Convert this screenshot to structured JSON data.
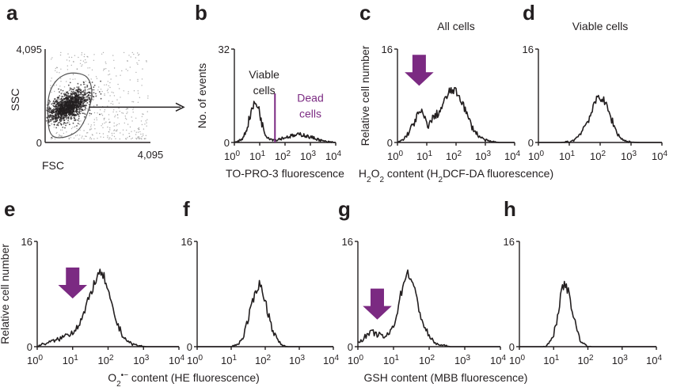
{
  "colors": {
    "ink": "#231f20",
    "accent": "#7b2a82",
    "gate": "#555555"
  },
  "chart_data": [
    {
      "panel": "a",
      "type": "scatter",
      "xlabel": "FSC",
      "ylabel": "SSC",
      "xlim": [
        0,
        4095
      ],
      "ylim": [
        0,
        4095
      ],
      "x_ticks": [
        {
          "v": 0,
          "label": "0"
        },
        {
          "v": 4095,
          "label": "4,095"
        }
      ],
      "y_ticks": [
        {
          "v": 0,
          "label": "0"
        },
        {
          "v": 4095,
          "label": "4,095"
        }
      ],
      "gate": [
        [
          130,
          1920
        ],
        [
          430,
          2700
        ],
        [
          1000,
          3040
        ],
        [
          1650,
          2830
        ],
        [
          1800,
          1920
        ],
        [
          1350,
          620
        ],
        [
          600,
          210
        ],
        [
          170,
          520
        ]
      ],
      "cluster_center": [
        900,
        1580
      ]
    },
    {
      "panel": "b",
      "type": "line",
      "xscale": "log",
      "xlabel": "TO-PRO-3 fluorescence",
      "ylabel": "No. of events",
      "xlim": [
        1,
        10000
      ],
      "ylim": [
        0,
        32
      ],
      "y_ticks": [
        {
          "v": 0,
          "label": "0"
        },
        {
          "v": 32,
          "label": "32"
        }
      ],
      "x_ticks": [
        {
          "exp": "0"
        },
        {
          "exp": "1"
        },
        {
          "exp": "2"
        },
        {
          "exp": "3"
        },
        {
          "exp": "4"
        }
      ],
      "series": [
        {
          "x": [
            1.0,
            1.4,
            2.0,
            2.8,
            4.0,
            5.0,
            6.3,
            7.5,
            8.5,
            10,
            11,
            12.5,
            14,
            16,
            20,
            25,
            32,
            40,
            50,
            63,
            80,
            100,
            140,
            200,
            280,
            400,
            560,
            800,
            1000,
            1400,
            2000,
            2800,
            4000,
            6000,
            10000
          ],
          "y": [
            0,
            0.3,
            1.2,
            3.5,
            8.5,
            11.5,
            13.3,
            13.0,
            12.6,
            10.5,
            8.3,
            6.2,
            4.8,
            3.2,
            2.0,
            1.4,
            1.0,
            0.9,
            1.0,
            1.3,
            1.5,
            1.7,
            2.0,
            2.3,
            2.4,
            2.8,
            2.6,
            2.0,
            1.8,
            1.5,
            1.1,
            0.6,
            0.3,
            0.1,
            0
          ]
        }
      ],
      "threshold": 40,
      "annotations": [
        {
          "lines": [
            "Viable",
            "cells"
          ],
          "at": [
            15,
            22
          ],
          "color": "ink"
        },
        {
          "lines": [
            "Dead",
            "cells"
          ],
          "at": [
            1000,
            14
          ],
          "color": "accent"
        }
      ]
    },
    {
      "panel": "c",
      "type": "line",
      "xscale": "log",
      "title": "All cells",
      "xlabel": "H2O2 content (H2DCF-DA fluorescence)",
      "ylabel": "Relative cell number",
      "xlim": [
        1,
        10000
      ],
      "ylim": [
        0,
        16
      ],
      "y_ticks": [
        {
          "v": 0,
          "label": "0"
        },
        {
          "v": 16,
          "label": "16"
        }
      ],
      "x_ticks": [
        {
          "exp": "0"
        },
        {
          "exp": "1"
        },
        {
          "exp": "2"
        },
        {
          "exp": "3"
        },
        {
          "exp": "4"
        }
      ],
      "series": [
        {
          "x": [
            1.0,
            1.6,
            2.5,
            3.5,
            4.5,
            5.5,
            6.5,
            7.5,
            9,
            11,
            13,
            16,
            20,
            25,
            32,
            45,
            60,
            80,
            100,
            130,
            170,
            220,
            300,
            400,
            600,
            900,
            1300,
            2000,
            3000,
            5000,
            10000
          ],
          "y": [
            0,
            0.5,
            1.8,
            3.2,
            4.3,
            5.0,
            5.2,
            4.8,
            3.7,
            3.0,
            3.3,
            4.1,
            4.7,
            5.0,
            5.9,
            7.6,
            8.7,
            9.0,
            8.6,
            7.9,
            6.8,
            5.1,
            3.4,
            2.2,
            1.1,
            0.5,
            0.2,
            0.1,
            0,
            0,
            0
          ]
        }
      ],
      "arrow_at": [
        5.5,
        9.8
      ]
    },
    {
      "panel": "d",
      "type": "line",
      "xscale": "log",
      "title": "Viable cells",
      "xlabel": "",
      "ylabel": "",
      "xlim": [
        1,
        10000
      ],
      "ylim": [
        0,
        16
      ],
      "y_ticks": [
        {
          "v": 0,
          "label": "0"
        },
        {
          "v": 16,
          "label": "16"
        }
      ],
      "x_ticks": [
        {
          "exp": "0"
        },
        {
          "exp": "1"
        },
        {
          "exp": "2"
        },
        {
          "exp": "3"
        },
        {
          "exp": "4"
        }
      ],
      "series": [
        {
          "x": [
            1.0,
            5,
            10,
            14,
            18,
            22,
            30,
            40,
            50,
            60,
            70,
            80,
            90,
            100,
            120,
            150,
            200,
            260,
            320,
            400,
            500,
            700,
            1000,
            2000,
            10000
          ],
          "y": [
            0,
            0,
            0.1,
            0.4,
            0.9,
            1.5,
            2.6,
            3.8,
            4.9,
            5.8,
            6.9,
            7.6,
            8.0,
            7.8,
            7.4,
            6.6,
            4.9,
            3.4,
            2.1,
            1.2,
            0.6,
            0.2,
            0.05,
            0,
            0
          ]
        }
      ]
    },
    {
      "panel": "e",
      "type": "line",
      "xscale": "log",
      "xlabel": "O2•− content (HE fluorescence)",
      "ylabel": "Relative cell number",
      "xlim": [
        1,
        10000
      ],
      "ylim": [
        0,
        16
      ],
      "y_ticks": [
        {
          "v": 0,
          "label": "0"
        },
        {
          "v": 16,
          "label": "16"
        }
      ],
      "x_ticks": [
        {
          "exp": "0"
        },
        {
          "exp": "1"
        },
        {
          "exp": "2"
        },
        {
          "exp": "3"
        },
        {
          "exp": "4"
        }
      ],
      "series": [
        {
          "x": [
            1.0,
            1.5,
            2,
            3,
            4,
            5,
            6,
            7,
            8,
            10,
            12,
            15,
            18,
            22,
            27,
            33,
            40,
            50,
            60,
            70,
            80,
            90,
            110,
            140,
            180,
            230,
            300,
            400,
            550,
            800,
            1200,
            10000
          ],
          "y": [
            0.1,
            0.4,
            0.6,
            0.9,
            1.1,
            1.4,
            1.6,
            1.9,
            2.0,
            2.2,
            2.8,
            3.5,
            4.2,
            5.3,
            6.8,
            8.3,
            9.5,
            10.6,
            11.1,
            10.9,
            10.4,
            9.1,
            7.4,
            5.3,
            3.6,
            2.2,
            1.3,
            0.6,
            0.3,
            0.1,
            0,
            0
          ]
        }
      ],
      "arrow_at": [
        10,
        7.4
      ]
    },
    {
      "panel": "f",
      "type": "line",
      "xscale": "log",
      "xlabel": "",
      "ylabel": "",
      "xlim": [
        1,
        10000
      ],
      "ylim": [
        0,
        16
      ],
      "y_ticks": [
        {
          "v": 0,
          "label": "0"
        },
        {
          "v": 16,
          "label": "16"
        }
      ],
      "x_ticks": [
        {
          "exp": "0"
        },
        {
          "exp": "1"
        },
        {
          "exp": "2"
        },
        {
          "exp": "3"
        },
        {
          "exp": "4"
        }
      ],
      "series": [
        {
          "x": [
            1.0,
            10,
            15,
            20,
            25,
            30,
            38,
            45,
            52,
            60,
            66,
            72,
            80,
            90,
            100,
            120,
            150,
            200,
            260,
            330,
            450,
            10000
          ],
          "y": [
            0,
            0,
            0.3,
            1.0,
            2.2,
            3.8,
            5.6,
            7.1,
            8.4,
            9.2,
            9.5,
            9.3,
            8.8,
            7.9,
            6.8,
            5.3,
            3.3,
            1.6,
            0.6,
            0.2,
            0,
            0
          ]
        }
      ]
    },
    {
      "panel": "g",
      "type": "line",
      "xscale": "log",
      "xlabel": "GSH content (MBB fluorescence)",
      "ylabel": "",
      "xlim": [
        1,
        10000
      ],
      "ylim": [
        0,
        16
      ],
      "y_ticks": [
        {
          "v": 0,
          "label": "0"
        },
        {
          "v": 16,
          "label": "16"
        }
      ],
      "x_ticks": [
        {
          "exp": "0"
        },
        {
          "exp": "1"
        },
        {
          "exp": "2"
        },
        {
          "exp": "3"
        },
        {
          "exp": "4"
        }
      ],
      "series": [
        {
          "x": [
            1.0,
            1.3,
            1.7,
            2.2,
            2.8,
            3.5,
            4.5,
            6,
            7.5,
            9,
            11,
            13,
            15,
            18,
            21,
            24,
            28,
            33,
            40,
            50,
            60,
            75,
            100,
            130,
            170,
            220,
            300,
            400,
            600,
            10000
          ],
          "y": [
            0.6,
            1.1,
            1.6,
            2.0,
            2.1,
            1.9,
            1.6,
            1.5,
            1.9,
            2.7,
            4.0,
            5.6,
            7.2,
            9.1,
            10.5,
            11.2,
            10.9,
            10.0,
            8.3,
            6.2,
            4.5,
            2.9,
            1.6,
            0.8,
            0.4,
            0.2,
            0.1,
            0,
            0,
            0
          ]
        }
      ],
      "arrow_at": [
        3.5,
        4.2
      ]
    },
    {
      "panel": "h",
      "type": "line",
      "xscale": "log",
      "xlabel": "",
      "ylabel": "",
      "xlim": [
        1,
        10000
      ],
      "ylim": [
        0,
        16
      ],
      "y_ticks": [
        {
          "v": 0,
          "label": "0"
        },
        {
          "v": 16,
          "label": "16"
        }
      ],
      "x_ticks": [
        {
          "exp": "0"
        },
        {
          "exp": "1"
        },
        {
          "exp": "2"
        },
        {
          "exp": "3"
        },
        {
          "exp": "4"
        }
      ],
      "series": [
        {
          "x": [
            1.0,
            5,
            7,
            9,
            11,
            13,
            15,
            17,
            19,
            21,
            23,
            26,
            30,
            35,
            42,
            50,
            60,
            75,
            95,
            130,
            10000
          ],
          "y": [
            0,
            0,
            0.3,
            1.2,
            2.8,
            4.8,
            6.7,
            8.2,
            9.2,
            9.6,
            9.4,
            8.6,
            7.3,
            5.6,
            3.7,
            2.2,
            1.1,
            0.4,
            0.1,
            0,
            0
          ]
        }
      ]
    }
  ]
}
